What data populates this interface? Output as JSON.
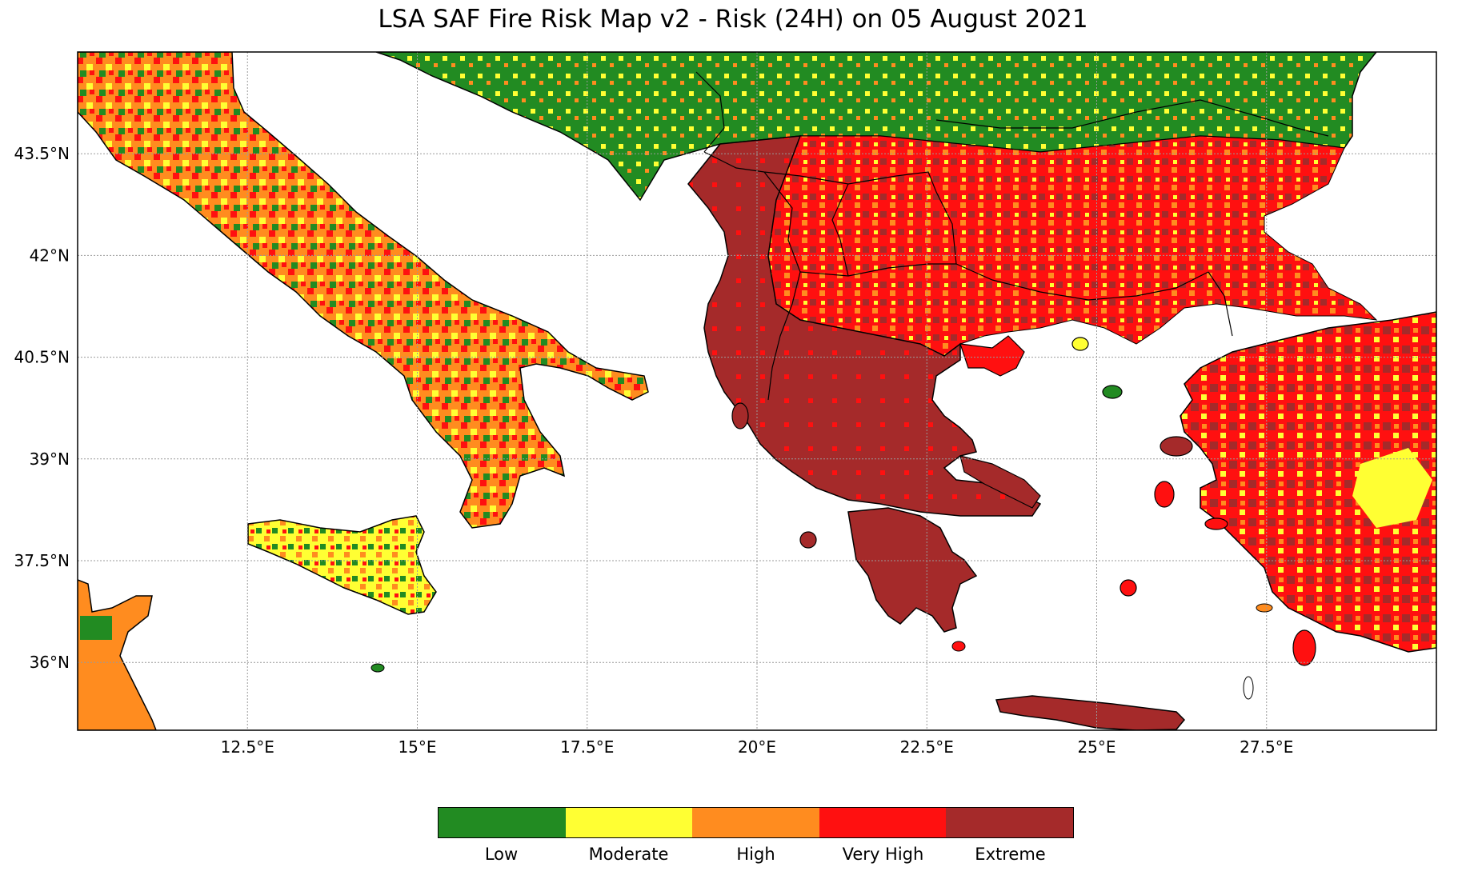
{
  "title": "LSA SAF Fire Risk Map v2 - Risk (24H) on 05 August 2021",
  "map": {
    "lon_range": [
      10.0,
      30.0
    ],
    "lat_range": [
      35.0,
      45.0
    ],
    "x_ticks": [
      {
        "value": 12.5,
        "label": "12.5°E"
      },
      {
        "value": 15,
        "label": "15°E"
      },
      {
        "value": 17.5,
        "label": "17.5°E"
      },
      {
        "value": 20,
        "label": "20°E"
      },
      {
        "value": 22.5,
        "label": "22.5°E"
      },
      {
        "value": 25,
        "label": "25°E"
      },
      {
        "value": 27.5,
        "label": "27.5°E"
      }
    ],
    "y_ticks": [
      {
        "value": 43.5,
        "label": "43.5°N"
      },
      {
        "value": 42,
        "label": "42°N"
      },
      {
        "value": 40.5,
        "label": "40.5°N"
      },
      {
        "value": 39,
        "label": "39°N"
      },
      {
        "value": 37.5,
        "label": "37.5°N"
      },
      {
        "value": 36,
        "label": "36°N"
      }
    ],
    "gridlines": true,
    "background_color": "#ffffff",
    "coastline_color": "#000000"
  },
  "legend": {
    "categories": [
      {
        "label": "Low",
        "color": "#228B22"
      },
      {
        "label": "Moderate",
        "color": "#FFFF33"
      },
      {
        "label": "High",
        "color": "#FF8C1F"
      },
      {
        "label": "Very High",
        "color": "#FF1010"
      },
      {
        "label": "Extreme",
        "color": "#A52A2A"
      }
    ]
  },
  "regions": [
    {
      "name": "italy-peninsula",
      "risk": "High"
    },
    {
      "name": "sicily",
      "risk": "Moderate"
    },
    {
      "name": "tunisia",
      "risk": "High"
    },
    {
      "name": "balkans-north",
      "risk": "Low"
    },
    {
      "name": "balkans-south",
      "risk": "Extreme"
    },
    {
      "name": "greece-mainland",
      "risk": "Extreme"
    },
    {
      "name": "peloponnese",
      "risk": "Extreme"
    },
    {
      "name": "bulgaria",
      "risk": "Very High"
    },
    {
      "name": "turkey-west",
      "risk": "Very High"
    },
    {
      "name": "crete",
      "risk": "Extreme"
    }
  ]
}
